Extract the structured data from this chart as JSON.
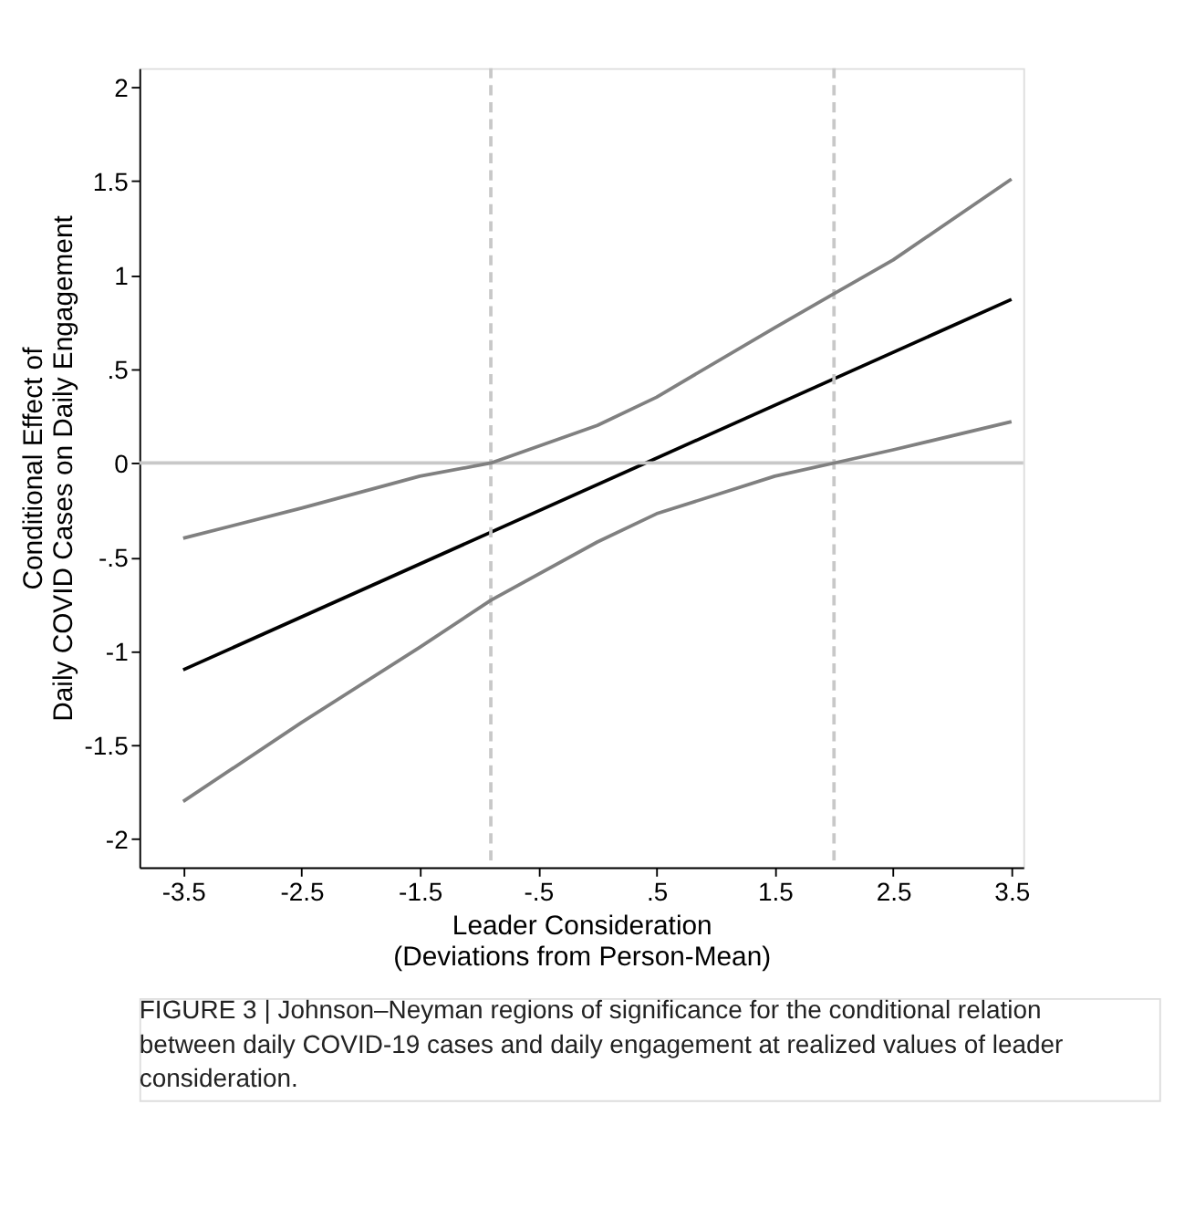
{
  "chart_data": {
    "type": "line",
    "xlabel": "Leader Consideration\n(Deviations from Person-Mean)",
    "ylabel": "Conditional Effect of\nDaily COVID Cases on Daily Engagement",
    "xlim": [
      -3.87,
      3.6
    ],
    "xticks": [
      -3.5,
      -2.5,
      -1.5,
      {
        "value": -0.5,
        "label": "-.5"
      },
      {
        "value": 0.5,
        "label": ".5"
      },
      1.5,
      2.5,
      3.5
    ],
    "ylim": [
      -2.15,
      2.1
    ],
    "yticks": [
      -2,
      -1.5,
      -1,
      {
        "value": -0.5,
        "label": "-.5"
      },
      0,
      {
        "value": 0.5,
        "label": ".5"
      },
      1,
      1.5,
      2
    ],
    "series": [
      {
        "color": "#000000",
        "x": [
          -3.5,
          3.5
        ],
        "values": [
          -1.1,
          0.87
        ]
      },
      {
        "color": "#808080",
        "x": [
          -3.5,
          -2.5,
          -1.5,
          -0.9,
          0,
          0.5,
          1.5,
          2,
          2.5,
          3.5
        ],
        "values": [
          -0.4,
          -0.24,
          -0.07,
          0,
          0.2,
          0.35,
          0.72,
          0.9,
          1.08,
          1.51
        ]
      },
      {
        "color": "#808080",
        "x": [
          -3.5,
          -2.5,
          -1.5,
          -0.9,
          0,
          0.5,
          1.5,
          2,
          2.5,
          3.5
        ],
        "values": [
          -1.8,
          -1.38,
          -0.98,
          -0.73,
          -0.42,
          -0.27,
          -0.07,
          0,
          0.07,
          0.22
        ]
      }
    ],
    "ref_lines": [
      {
        "axis": "x",
        "value": -0.9,
        "color": "#c8c8c8",
        "line_style": "dashed"
      },
      {
        "axis": "x",
        "value": 2.0,
        "color": "#c8c8c8",
        "line_style": "dashed"
      },
      {
        "axis": "y",
        "value": 0,
        "color": "#c8c8c8",
        "line_style": "solid"
      }
    ],
    "grid": false,
    "marker": "none",
    "line_style": "solid",
    "annotations": [
      "FIGURE 3 | Johnson–Neyman regions of significance for the conditional relation between daily COVID-19 cases and daily engagement at realized values of leader consideration."
    ]
  }
}
